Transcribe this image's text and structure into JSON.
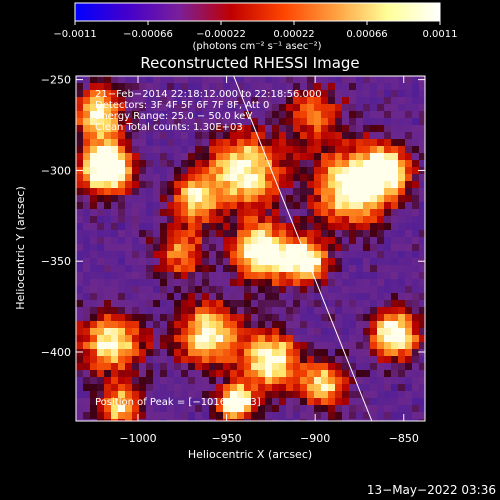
{
  "chart_data": {
    "type": "heatmap",
    "title": "Reconstructed RHESSI Image",
    "xlabel": "Heliocentric X (arcsec)",
    "ylabel": "Heliocentric Y (arcsec)",
    "xlim": [
      -1035,
      -838
    ],
    "ylim": [
      -438,
      -248
    ],
    "xticks": [
      {
        "value": -1000,
        "label": "−1000"
      },
      {
        "value": -950,
        "label": "−950"
      },
      {
        "value": -900,
        "label": "−900"
      },
      {
        "value": -850,
        "label": "−850"
      }
    ],
    "yticks": [
      {
        "value": -250,
        "label": "−250"
      },
      {
        "value": -300,
        "label": "−300"
      },
      {
        "value": -350,
        "label": "−350"
      },
      {
        "value": -400,
        "label": "−400"
      }
    ],
    "colorbar": {
      "min": -0.0011,
      "max": 0.0011,
      "tick_values": [
        -0.0011,
        -0.00066,
        -0.00022,
        0.00022,
        0.00066,
        0.0011
      ],
      "tick_labels": [
        "−0.0011",
        "−0.00066",
        "−0.00022",
        "0.00022",
        "0.00066",
        "0.0011"
      ],
      "units_label": "(photons cm⁻² s⁻¹ asec⁻²)",
      "colors": [
        "#0000ff",
        "#4400cc",
        "#7a1f9a",
        "#c00000",
        "#ff4400",
        "#ffa040",
        "#ffff99",
        "#ffffff"
      ]
    },
    "annotations": {
      "time_range": "21−Feb−2014 22:18:12.000 to 22:18:56.000",
      "detectors": "Detectors: 3F 4F 5F 6F 7F 8F, Att 0",
      "energy": "Energy Range: 25.0 − 50.0 keV",
      "method": "Clean    Total counts: 1.30E+03",
      "peak": "Position of Peak = [−1016,−293]"
    },
    "peak": {
      "x": -1016,
      "y": -293
    },
    "limb_line": [
      {
        "x": -946,
        "y": -248
      },
      {
        "x": -868,
        "y": -438
      }
    ],
    "hotspots": [
      {
        "x": -1018,
        "y": -298,
        "intensity": 1.0,
        "sigma": 10
      },
      {
        "x": -1022,
        "y": -268,
        "intensity": 0.7,
        "sigma": 9
      },
      {
        "x": -968,
        "y": -315,
        "intensity": 0.6,
        "sigma": 9
      },
      {
        "x": -940,
        "y": -300,
        "intensity": 0.7,
        "sigma": 14
      },
      {
        "x": -930,
        "y": -345,
        "intensity": 0.8,
        "sigma": 11
      },
      {
        "x": -905,
        "y": -350,
        "intensity": 0.7,
        "sigma": 9
      },
      {
        "x": -880,
        "y": -310,
        "intensity": 0.75,
        "sigma": 14
      },
      {
        "x": -860,
        "y": -300,
        "intensity": 0.65,
        "sigma": 10
      },
      {
        "x": -855,
        "y": -390,
        "intensity": 0.8,
        "sigma": 9
      },
      {
        "x": -1015,
        "y": -395,
        "intensity": 0.65,
        "sigma": 12
      },
      {
        "x": -960,
        "y": -390,
        "intensity": 0.7,
        "sigma": 12
      },
      {
        "x": -925,
        "y": -405,
        "intensity": 0.75,
        "sigma": 11
      },
      {
        "x": -945,
        "y": -428,
        "intensity": 0.85,
        "sigma": 7
      },
      {
        "x": -895,
        "y": -418,
        "intensity": 0.6,
        "sigma": 9
      },
      {
        "x": -1010,
        "y": -430,
        "intensity": 0.6,
        "sigma": 8
      },
      {
        "x": -975,
        "y": -345,
        "intensity": 0.45,
        "sigma": 10
      },
      {
        "x": -900,
        "y": -270,
        "intensity": 0.4,
        "sigma": 12
      }
    ]
  },
  "footer": {
    "date": "13−May−2022 03:36"
  }
}
